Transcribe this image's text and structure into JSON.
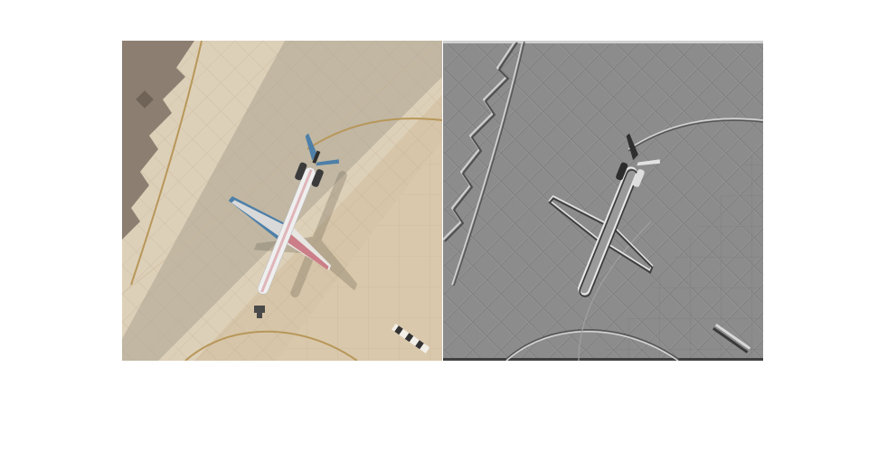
{
  "figure": {
    "panels": [
      {
        "kind": "photo",
        "subject": "aerial-airplane-on-apron"
      },
      {
        "kind": "emboss-filtered",
        "subject": "aerial-airplane-on-apron"
      }
    ]
  },
  "colors": {
    "apron_light": "#d9c7ab",
    "apron_shaded": "#a9a08f",
    "dark_ground": "#8a7d70",
    "taxi_line": "#b89a5c",
    "fuselage": "#ececec",
    "tail_blue": "#4d7fa8",
    "emboss_base": "#8c8c8c",
    "emboss_highlight": "#d6d6d6",
    "emboss_shadow": "#4a4a4a"
  }
}
